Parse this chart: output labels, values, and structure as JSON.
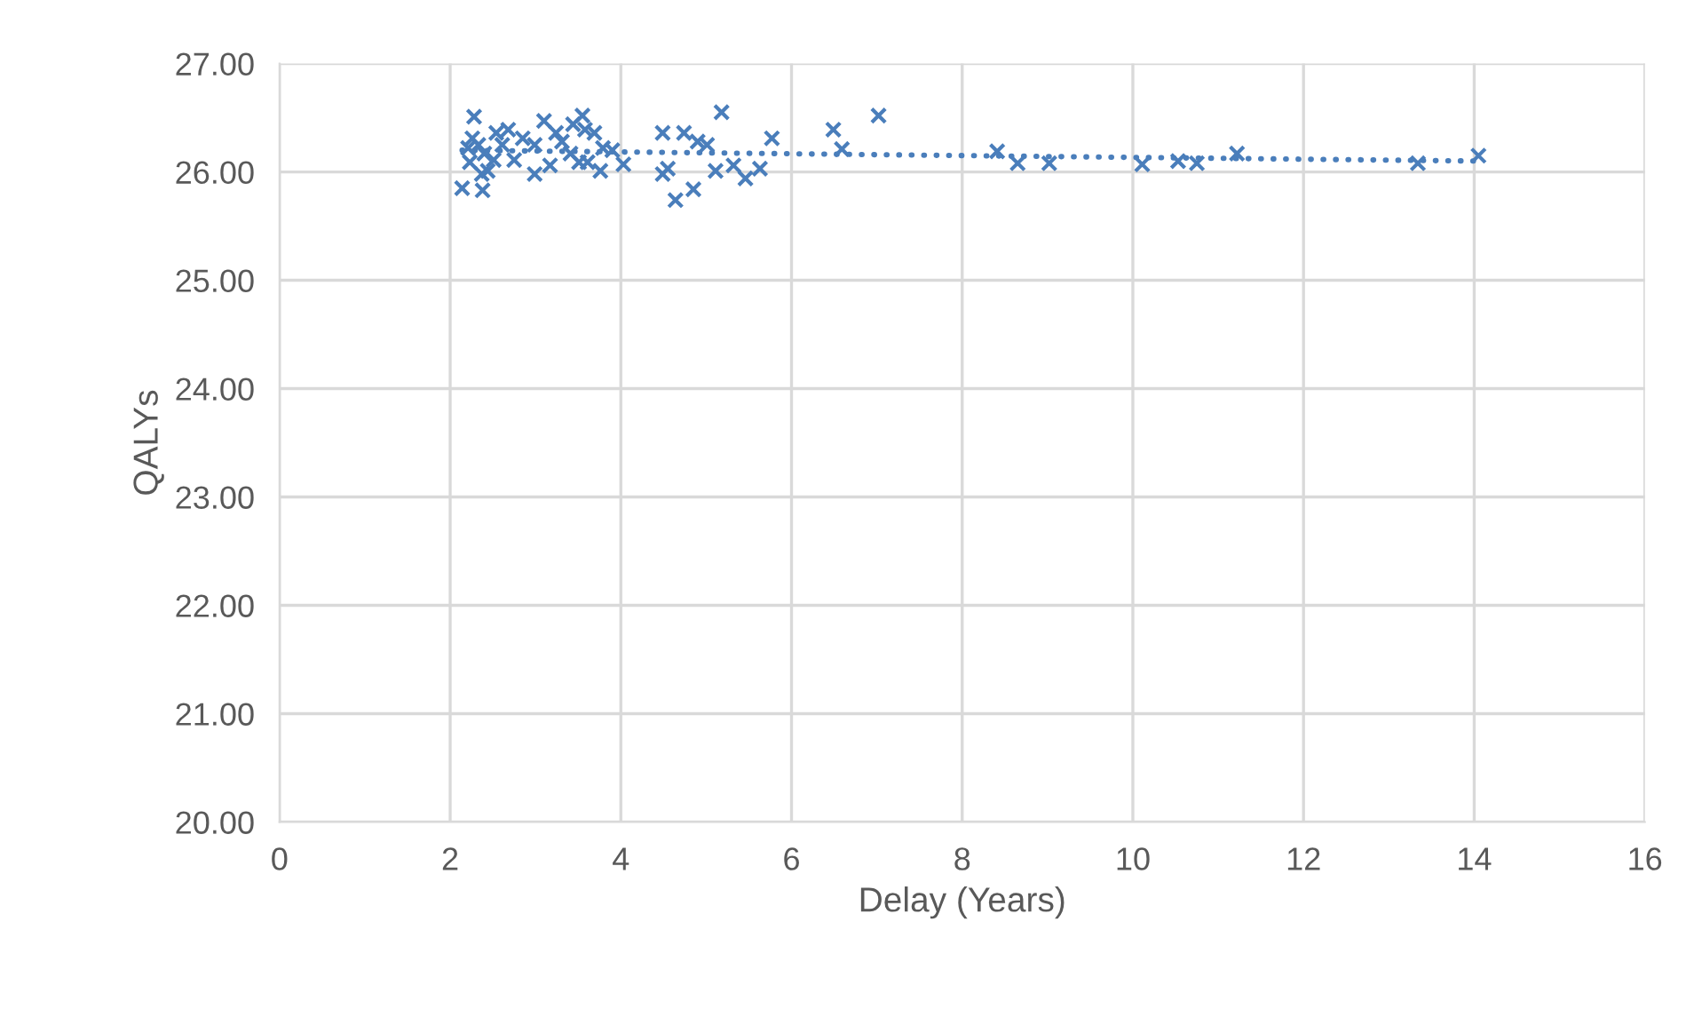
{
  "chart_data": {
    "type": "scatter",
    "xlabel": "Delay (Years)",
    "ylabel": "QALYs",
    "xlim": [
      0,
      16
    ],
    "xticks": [
      0,
      2,
      4,
      6,
      8,
      10,
      12,
      14,
      16
    ],
    "ylim": [
      20,
      27
    ],
    "yticks": [
      {
        "value": 20,
        "label": "20.00"
      },
      {
        "value": 21,
        "label": "21.00"
      },
      {
        "value": 22,
        "label": "22.00"
      },
      {
        "value": 23,
        "label": "23.00"
      },
      {
        "value": 24,
        "label": "24.00"
      },
      {
        "value": 25,
        "label": "25.00"
      },
      {
        "value": 26,
        "label": "26.00"
      },
      {
        "value": 27,
        "label": "27.00"
      }
    ],
    "grid": true,
    "legend": false,
    "series": [
      {
        "color": "#4a7ebb",
        "marker": "cross",
        "x": [
          2.14,
          2.38,
          2.28,
          2.21,
          2.26,
          2.33,
          2.4,
          2.23,
          2.44,
          2.37,
          2.51,
          2.54,
          2.68,
          2.61,
          2.75,
          2.85,
          2.99,
          3.1,
          2.99,
          3.17,
          3.24,
          3.31,
          3.41,
          3.44,
          3.55,
          3.58,
          3.69,
          3.51,
          3.61,
          3.76,
          3.79,
          3.9,
          4.03,
          4.49,
          4.49,
          4.55,
          4.64,
          4.74,
          4.85,
          4.9,
          5.01,
          5.18,
          5.11,
          5.32,
          5.46,
          5.63,
          5.77,
          6.49,
          6.59,
          7.02,
          8.41,
          8.65,
          9.02,
          10.11,
          10.53,
          10.75,
          11.22,
          13.34,
          14.05
        ],
        "values": [
          25.85,
          25.83,
          26.51,
          26.22,
          26.31,
          26.25,
          26.17,
          26.09,
          26.01,
          25.98,
          26.11,
          26.36,
          26.39,
          26.25,
          26.11,
          26.31,
          26.25,
          26.47,
          25.98,
          26.06,
          26.36,
          26.28,
          26.17,
          26.44,
          26.52,
          26.39,
          26.36,
          26.09,
          26.09,
          26.01,
          26.22,
          26.2,
          26.07,
          26.36,
          25.98,
          26.03,
          25.74,
          26.36,
          25.84,
          26.28,
          26.25,
          26.55,
          26.01,
          26.06,
          25.94,
          26.03,
          26.31,
          26.39,
          26.21,
          26.52,
          26.19,
          26.08,
          26.08,
          26.07,
          26.1,
          26.08,
          26.17,
          26.08,
          26.15
        ]
      },
      {
        "type": "line",
        "color": "#4a7ebb",
        "line_style": "dotted",
        "marker": "none",
        "x": [
          2.14,
          14.05
        ],
        "values": [
          26.2,
          26.1
        ]
      }
    ]
  }
}
